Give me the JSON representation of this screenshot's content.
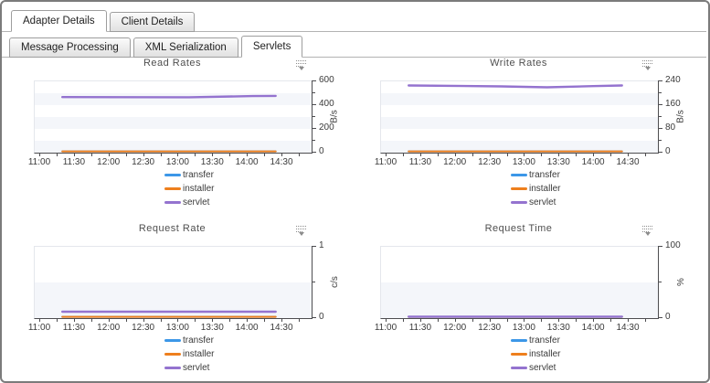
{
  "window": {
    "background": "#ffffff",
    "frame_color": "#7b7b7b"
  },
  "tab_rows": [
    {
      "name": "primary",
      "tabs": [
        {
          "label": "Adapter Details",
          "active": true
        },
        {
          "label": "Client Details",
          "active": false
        }
      ]
    },
    {
      "name": "secondary",
      "tabs": [
        {
          "label": "Message Processing",
          "active": false
        },
        {
          "label": "XML Serialization",
          "active": false
        },
        {
          "label": "Servlets",
          "active": true
        }
      ]
    }
  ],
  "palette": {
    "transfer": "#3c97e8",
    "installer": "#ee7f1d",
    "servlet": "#9473cf",
    "axis": "#4d4d50",
    "grid_band": "#f4f6fa",
    "plot_border": "#e4e7ec",
    "title_text": "#4f4f4f",
    "tick_text": "#3a3a3a",
    "icon": "#8c8c8c"
  },
  "icons": {
    "chart_menu": {
      "name": "chart-menu-icon",
      "glyph": "dotted-lines-with-down-arrow"
    }
  },
  "legend": {
    "position": "bottom",
    "items": [
      {
        "label": "transfer",
        "color_key": "transfer"
      },
      {
        "label": "installer",
        "color_key": "installer"
      },
      {
        "label": "servlet",
        "color_key": "servlet"
      }
    ]
  },
  "chart_data": [
    {
      "type": "line",
      "title": "Read Rates",
      "ylabel": "B/s",
      "ylim": [
        0,
        600
      ],
      "yticks": [
        0,
        200,
        400,
        600
      ],
      "minor_yticks": [
        100,
        300,
        500
      ],
      "x_ticks": [
        "11:00",
        "11:30",
        "12:00",
        "12:30",
        "13:00",
        "13:30",
        "14:00",
        "14:30"
      ],
      "grid": "horizontal-bands",
      "legend_position": "bottom",
      "y_axis_side": "right",
      "series": [
        {
          "name": "transfer",
          "points": [
            [
              "11:20",
              0
            ],
            [
              "14:25",
              0
            ]
          ]
        },
        {
          "name": "installer",
          "points": [
            [
              "11:20",
              3
            ],
            [
              "14:25",
              3
            ]
          ]
        },
        {
          "name": "servlet",
          "points": [
            [
              "11:20",
              468
            ],
            [
              "13:10",
              466
            ],
            [
              "14:05",
              476
            ],
            [
              "14:25",
              478
            ]
          ]
        }
      ]
    },
    {
      "type": "line",
      "title": "Write Rates",
      "ylabel": "B/s",
      "ylim": [
        0,
        240
      ],
      "yticks": [
        0,
        80,
        160,
        240
      ],
      "minor_yticks": [
        40,
        120,
        200
      ],
      "x_ticks": [
        "11:00",
        "11:30",
        "12:00",
        "12:30",
        "13:00",
        "13:30",
        "14:00",
        "14:30"
      ],
      "grid": "horizontal-bands",
      "legend_position": "bottom",
      "y_axis_side": "right",
      "series": [
        {
          "name": "transfer",
          "points": [
            [
              "11:20",
              0
            ],
            [
              "14:25",
              0
            ]
          ]
        },
        {
          "name": "installer",
          "points": [
            [
              "11:20",
              1
            ],
            [
              "14:25",
              1
            ]
          ]
        },
        {
          "name": "servlet",
          "points": [
            [
              "11:20",
              226
            ],
            [
              "12:40",
              223
            ],
            [
              "13:20",
              220
            ],
            [
              "14:00",
              224
            ],
            [
              "14:25",
              226
            ]
          ]
        }
      ]
    },
    {
      "type": "line",
      "title": "Request Rate",
      "ylabel": "c/s",
      "ylim": [
        0,
        1
      ],
      "yticks": [
        0,
        1
      ],
      "minor_yticks": [
        0.5
      ],
      "x_ticks": [
        "11:00",
        "11:30",
        "12:00",
        "12:30",
        "13:00",
        "13:30",
        "14:00",
        "14:30"
      ],
      "grid": "horizontal-bands",
      "legend_position": "bottom",
      "y_axis_side": "right",
      "series": [
        {
          "name": "transfer",
          "points": [
            [
              "11:20",
              0
            ],
            [
              "14:25",
              0
            ]
          ]
        },
        {
          "name": "installer",
          "points": [
            [
              "11:20",
              0.005
            ],
            [
              "14:25",
              0.005
            ]
          ]
        },
        {
          "name": "servlet",
          "points": [
            [
              "11:20",
              0.09
            ],
            [
              "14:25",
              0.09
            ]
          ]
        }
      ]
    },
    {
      "type": "line",
      "title": "Request Time",
      "ylabel": "%",
      "ylim": [
        0,
        100
      ],
      "yticks": [
        0,
        100
      ],
      "minor_yticks": [
        50
      ],
      "x_ticks": [
        "11:00",
        "11:30",
        "12:00",
        "12:30",
        "13:00",
        "13:30",
        "14:00",
        "14:30"
      ],
      "grid": "horizontal-bands",
      "legend_position": "bottom",
      "y_axis_side": "right",
      "series": [
        {
          "name": "transfer",
          "points": [
            [
              "11:20",
              0
            ],
            [
              "14:25",
              0
            ]
          ]
        },
        {
          "name": "installer",
          "points": [
            [
              "11:20",
              0.5
            ],
            [
              "14:25",
              0.5
            ]
          ]
        },
        {
          "name": "servlet",
          "points": [
            [
              "11:20",
              2
            ],
            [
              "14:25",
              2
            ]
          ]
        }
      ]
    }
  ]
}
